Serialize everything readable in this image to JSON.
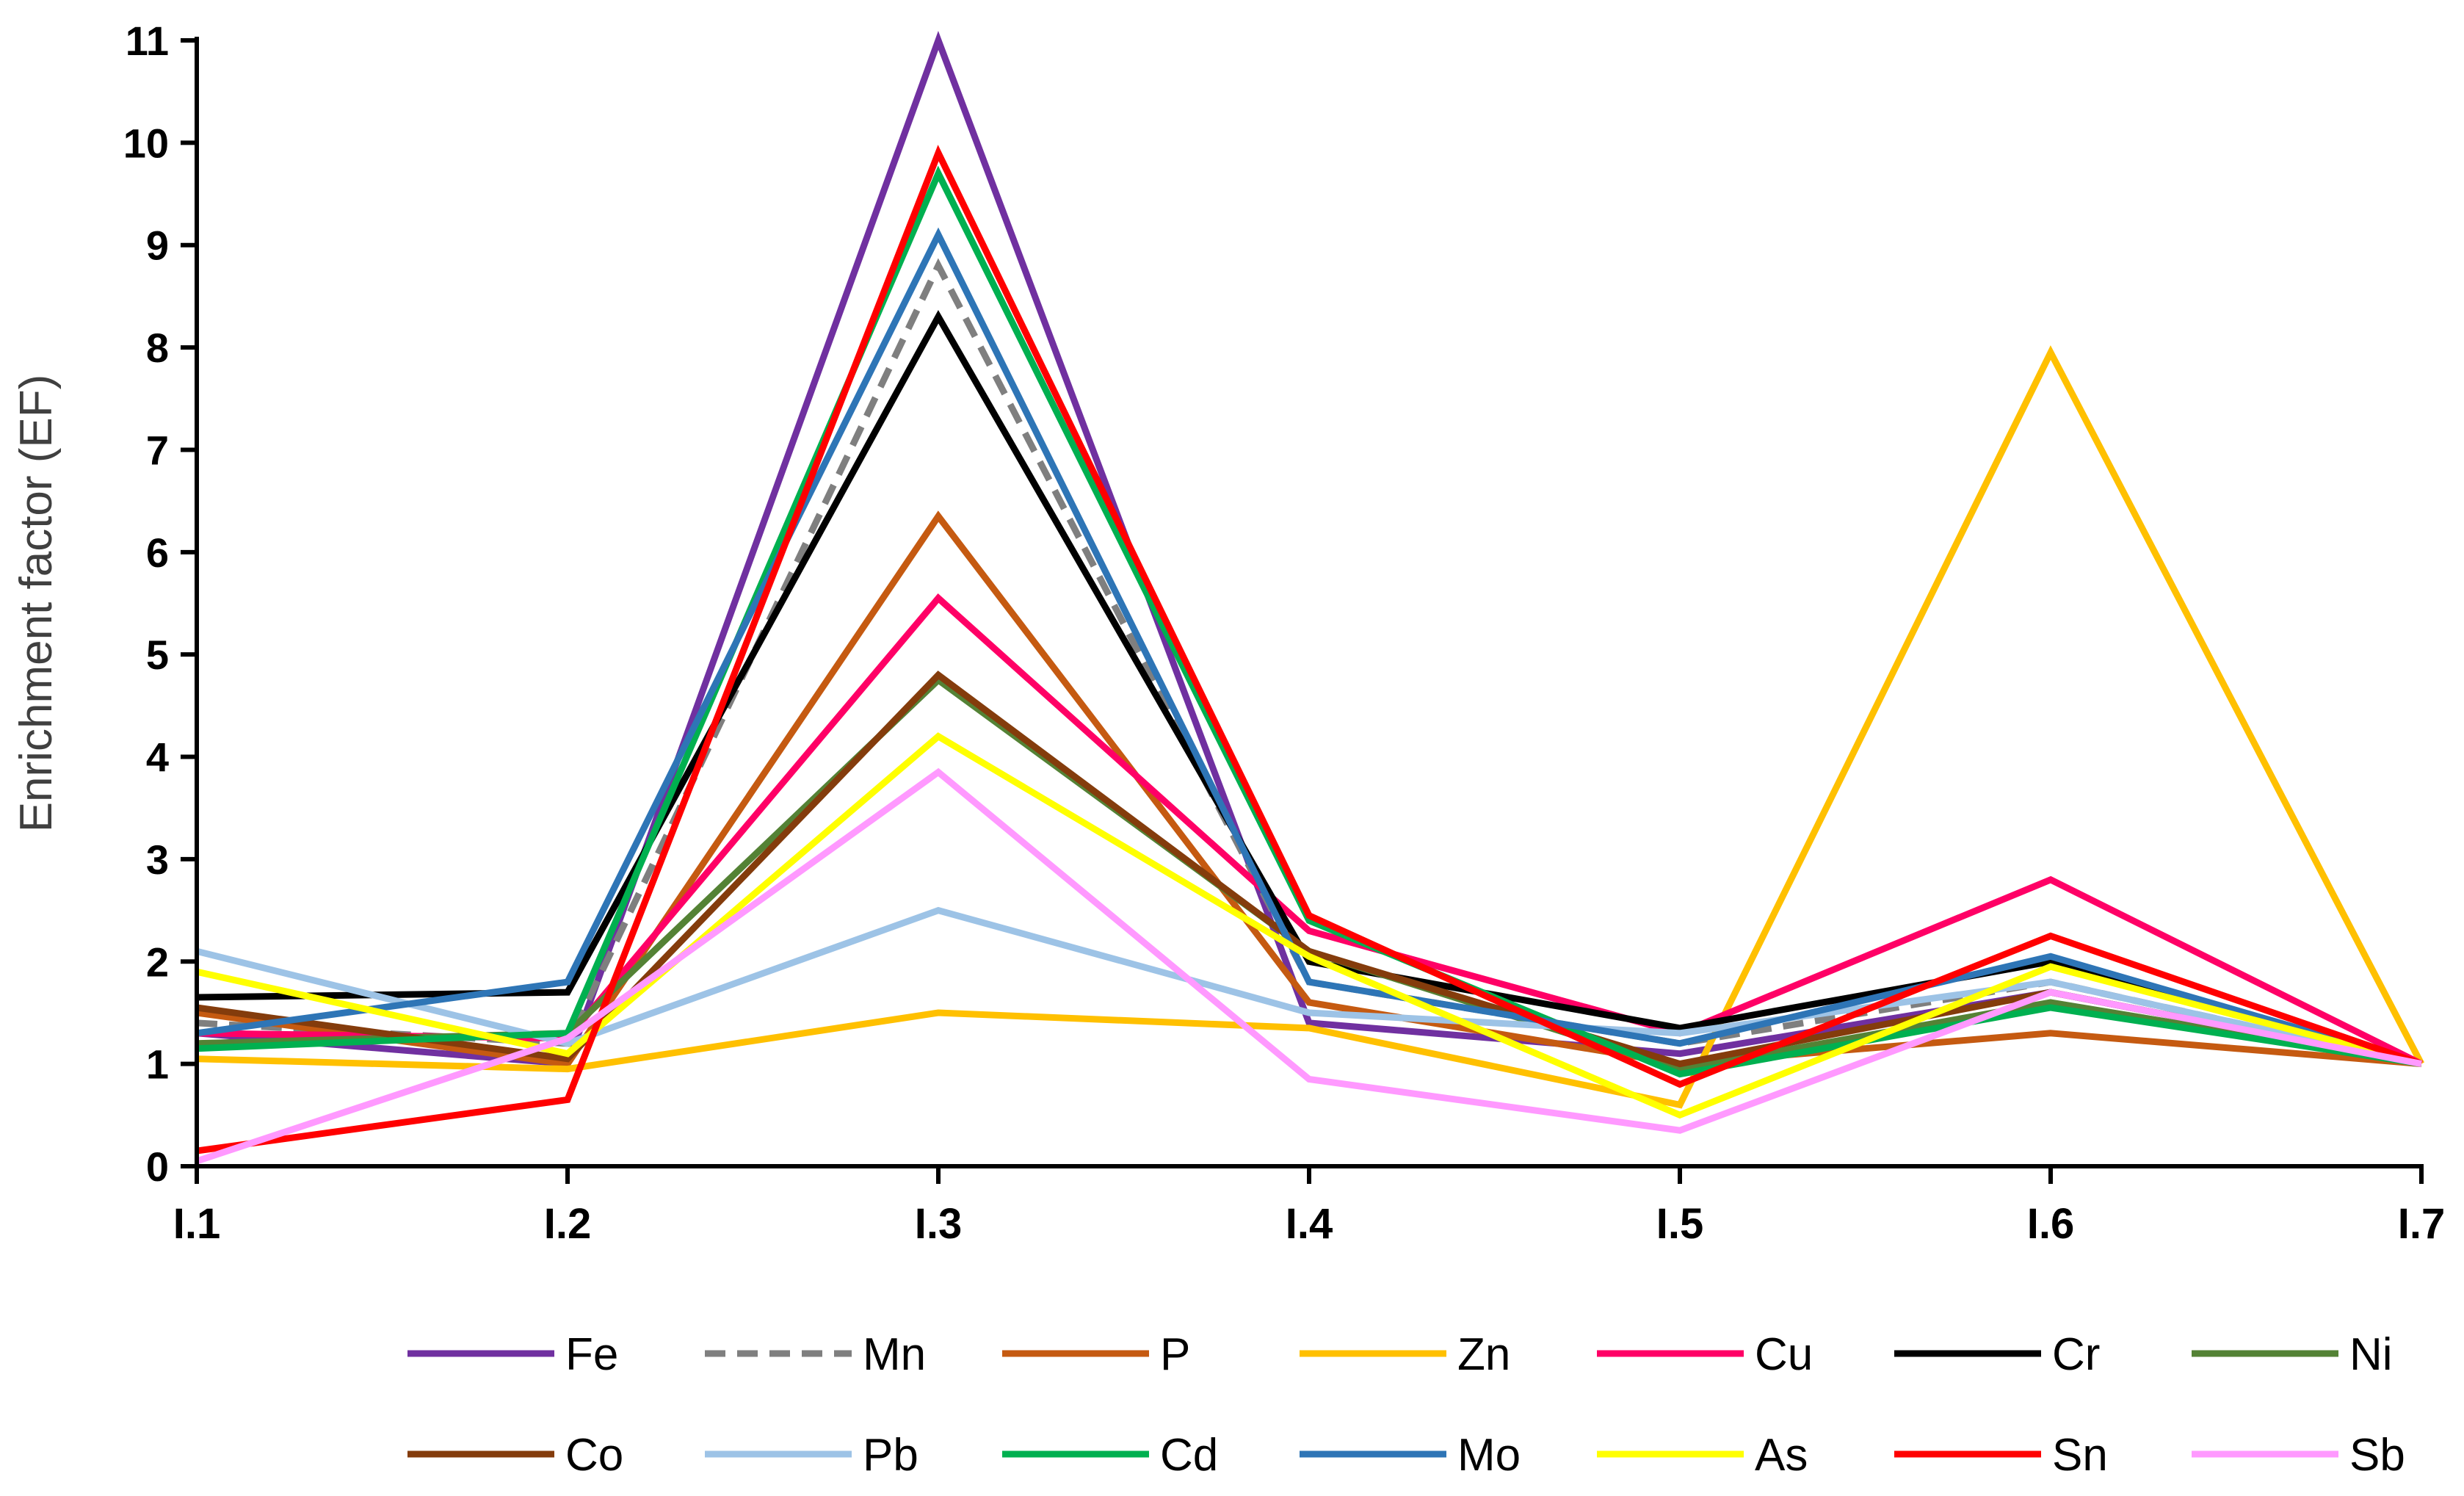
{
  "chart_data": {
    "type": "line",
    "title": "",
    "xlabel": "",
    "ylabel": "Enrichment factor (EF)",
    "ylim": [
      0,
      11
    ],
    "yticks": [
      "0",
      "1",
      "2",
      "3",
      "4",
      "5",
      "6",
      "7",
      "8",
      "9",
      "10",
      "11"
    ],
    "categories": [
      "I.1",
      "I.2",
      "I.3",
      "I.4",
      "I.5",
      "I.6",
      "I.7"
    ],
    "legend_position": "bottom",
    "series": [
      {
        "name": "Fe",
        "color": "#7030A0",
        "dash": false,
        "values": [
          1.3,
          1.0,
          11.0,
          1.4,
          1.1,
          1.7,
          1.0
        ]
      },
      {
        "name": "Mn",
        "color": "#7F7F7F",
        "dash": true,
        "values": [
          1.4,
          1.2,
          8.8,
          1.8,
          1.2,
          1.8,
          1.0
        ]
      },
      {
        "name": "P",
        "color": "#C55A11",
        "dash": false,
        "values": [
          1.5,
          1.0,
          6.35,
          1.6,
          1.0,
          1.3,
          1.0
        ]
      },
      {
        "name": "Zn",
        "color": "#FFC000",
        "dash": false,
        "values": [
          1.05,
          0.95,
          1.5,
          1.35,
          0.6,
          7.95,
          1.0
        ]
      },
      {
        "name": "Cu",
        "color": "#FF0066",
        "dash": false,
        "values": [
          1.3,
          1.25,
          5.55,
          2.3,
          1.3,
          2.8,
          1.0
        ]
      },
      {
        "name": "Cr",
        "color": "#000000",
        "dash": false,
        "values": [
          1.65,
          1.7,
          8.3,
          2.0,
          1.35,
          2.0,
          1.0
        ]
      },
      {
        "name": "Ni",
        "color": "#548235",
        "dash": false,
        "values": [
          1.2,
          1.3,
          4.75,
          2.1,
          0.95,
          1.6,
          1.0
        ]
      },
      {
        "name": "Co",
        "color": "#843C0C",
        "dash": false,
        "values": [
          1.55,
          1.05,
          4.8,
          2.1,
          1.0,
          1.7,
          1.0
        ]
      },
      {
        "name": "Pb",
        "color": "#9DC3E6",
        "dash": false,
        "values": [
          2.1,
          1.2,
          2.5,
          1.5,
          1.3,
          1.8,
          1.0
        ]
      },
      {
        "name": "Cd",
        "color": "#00B050",
        "dash": false,
        "values": [
          1.15,
          1.3,
          9.7,
          2.4,
          0.9,
          1.55,
          1.0
        ]
      },
      {
        "name": "Mo",
        "color": "#2E75B6",
        "dash": false,
        "values": [
          1.3,
          1.8,
          9.1,
          1.8,
          1.2,
          2.05,
          1.0
        ]
      },
      {
        "name": "As",
        "color": "#FFFF00",
        "dash": false,
        "values": [
          1.9,
          1.1,
          4.2,
          2.05,
          0.5,
          1.95,
          1.0
        ]
      },
      {
        "name": "Sn",
        "color": "#FF0000",
        "dash": false,
        "values": [
          0.15,
          0.65,
          9.9,
          2.45,
          0.8,
          2.25,
          1.0
        ]
      },
      {
        "name": "Sb",
        "color": "#FF99FF",
        "dash": false,
        "values": [
          0.05,
          1.25,
          3.85,
          0.85,
          0.35,
          1.7,
          1.0
        ]
      }
    ]
  }
}
